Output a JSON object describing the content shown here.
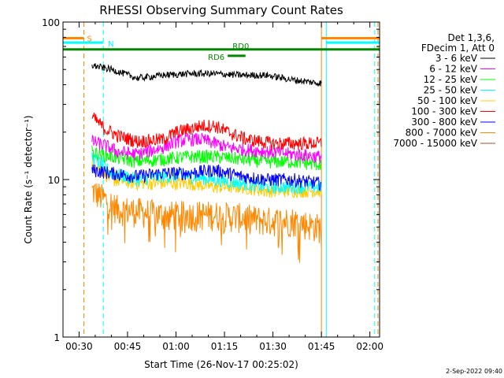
{
  "chart_data": {
    "type": "line",
    "title": "RHESSI Observing Summary Count Rates",
    "xlabel": "Start Time (26-Nov-17 00:25:02)",
    "ylabel": "Count Rate (s⁻¹ detector⁻¹)",
    "y_scale": "log",
    "ylim": [
      1,
      100
    ],
    "xlim_minutes": [
      25.03,
      123.0
    ],
    "x_ticks": [
      {
        "label": "00:30",
        "minute": 30
      },
      {
        "label": "00:45",
        "minute": 45
      },
      {
        "label": "01:00",
        "minute": 60
      },
      {
        "label": "01:15",
        "minute": 75
      },
      {
        "label": "01:30",
        "minute": 90
      },
      {
        "label": "01:45",
        "minute": 105
      },
      {
        "label": "02:00",
        "minute": 120
      }
    ],
    "y_ticks": [
      {
        "label": "1",
        "value": 1
      },
      {
        "label": "10",
        "value": 10
      },
      {
        "label": "100",
        "value": 100
      }
    ],
    "legend_header": [
      "Det 1,3,6,",
      "FDecim 1, Att 0"
    ],
    "legend_position": "right",
    "data_start_minute": 34.0,
    "data_end_minute": 105.0,
    "series": [
      {
        "name": "3 - 6 keV",
        "color": "#000000",
        "points": [
          [
            34,
            53
          ],
          [
            40,
            50
          ],
          [
            48,
            44
          ],
          [
            56,
            46
          ],
          [
            64,
            47
          ],
          [
            72,
            47
          ],
          [
            80,
            46
          ],
          [
            88,
            46
          ],
          [
            96,
            43
          ],
          [
            104,
            41
          ]
        ]
      },
      {
        "name": "6 - 12 keV",
        "color": "#ff00ff",
        "points": [
          [
            34,
            17.5
          ],
          [
            38,
            16.5
          ],
          [
            42,
            15
          ],
          [
            48,
            14.5
          ],
          [
            56,
            16
          ],
          [
            60,
            17.5
          ],
          [
            64,
            18
          ],
          [
            68,
            18
          ],
          [
            72,
            17
          ],
          [
            76,
            16
          ],
          [
            82,
            15.5
          ],
          [
            90,
            15
          ],
          [
            96,
            14.5
          ],
          [
            104,
            14
          ]
        ]
      },
      {
        "name": "12 - 25 keV",
        "color": "#00ff00",
        "points": [
          [
            34,
            15
          ],
          [
            40,
            14
          ],
          [
            48,
            13
          ],
          [
            56,
            13.5
          ],
          [
            64,
            14
          ],
          [
            72,
            14
          ],
          [
            80,
            13.5
          ],
          [
            88,
            13
          ],
          [
            96,
            13
          ],
          [
            104,
            12.5
          ]
        ]
      },
      {
        "name": "25 - 50 keV",
        "color": "#00ffff",
        "points": [
          [
            34,
            14
          ],
          [
            40,
            11
          ],
          [
            48,
            10
          ],
          [
            56,
            10.5
          ],
          [
            64,
            10.5
          ],
          [
            72,
            10
          ],
          [
            80,
            9.5
          ],
          [
            88,
            9
          ],
          [
            96,
            9
          ],
          [
            104,
            9
          ]
        ]
      },
      {
        "name": "50 - 100 keV",
        "color": "#ffcc00",
        "points": [
          [
            34,
            13
          ],
          [
            40,
            10
          ],
          [
            48,
            9.5
          ],
          [
            56,
            9.5
          ],
          [
            64,
            9.5
          ],
          [
            72,
            9
          ],
          [
            80,
            9
          ],
          [
            88,
            8.5
          ],
          [
            96,
            8.5
          ],
          [
            104,
            8.5
          ]
        ]
      },
      {
        "name": "100 - 300 keV",
        "color": "#ff0000",
        "points": [
          [
            34,
            25
          ],
          [
            38,
            21
          ],
          [
            42,
            19
          ],
          [
            48,
            17.5
          ],
          [
            56,
            18
          ],
          [
            60,
            20
          ],
          [
            64,
            21
          ],
          [
            68,
            22
          ],
          [
            72,
            22
          ],
          [
            76,
            20
          ],
          [
            82,
            18
          ],
          [
            90,
            17
          ],
          [
            96,
            17
          ],
          [
            104,
            17
          ]
        ]
      },
      {
        "name": "300 - 800 keV",
        "color": "#0000ff",
        "points": [
          [
            34,
            11.5
          ],
          [
            40,
            11
          ],
          [
            48,
            10.5
          ],
          [
            56,
            11
          ],
          [
            64,
            11
          ],
          [
            72,
            11.5
          ],
          [
            80,
            10.5
          ],
          [
            88,
            10
          ],
          [
            96,
            10
          ],
          [
            104,
            9.5
          ]
        ]
      },
      {
        "name": "800 - 7000 keV",
        "color": "#ff8800",
        "points": [
          [
            34,
            8.5
          ],
          [
            38,
            7.5
          ],
          [
            42,
            6.5
          ],
          [
            48,
            6.3
          ],
          [
            56,
            6
          ],
          [
            64,
            6
          ],
          [
            72,
            6
          ],
          [
            80,
            5.8
          ],
          [
            88,
            5.5
          ],
          [
            96,
            5.5
          ],
          [
            104,
            5
          ]
        ]
      },
      {
        "name": "7000 - 15000 keV",
        "color": "#a0522d",
        "points": []
      }
    ],
    "top_bars": [
      {
        "label": "S",
        "color": "#ff8800",
        "segments": [
          [
            25.03,
            31.5
          ],
          [
            105,
            123
          ]
        ],
        "y_value": 79
      },
      {
        "label": "N",
        "color": "#00ffff",
        "segments": [
          [
            25.03,
            37.5
          ],
          [
            106.5,
            123
          ]
        ],
        "y_value": 74
      },
      {
        "label": "RD0",
        "color": "#008800",
        "segments": [
          [
            25.03,
            123
          ]
        ],
        "y_value": 67
      },
      {
        "label": "RD6",
        "color": "#008800",
        "segments": [
          [
            76,
            81.5
          ]
        ],
        "y_value": 61
      }
    ],
    "vertical_markers": [
      {
        "minute": 31.5,
        "color": "#ff8800",
        "style": "dashed"
      },
      {
        "minute": 37.5,
        "color": "#00ffff",
        "style": "dashed"
      },
      {
        "minute": 105.0,
        "color": "#ff8800",
        "style": "solid"
      },
      {
        "minute": 106.5,
        "color": "#00ffff",
        "style": "solid"
      },
      {
        "minute": 121.5,
        "color": "#00ffff",
        "style": "dashed"
      },
      {
        "minute": 122.5,
        "color": "#ff8800",
        "style": "dashed"
      }
    ]
  },
  "footer_stamp": "2-Sep-2022 09:40"
}
